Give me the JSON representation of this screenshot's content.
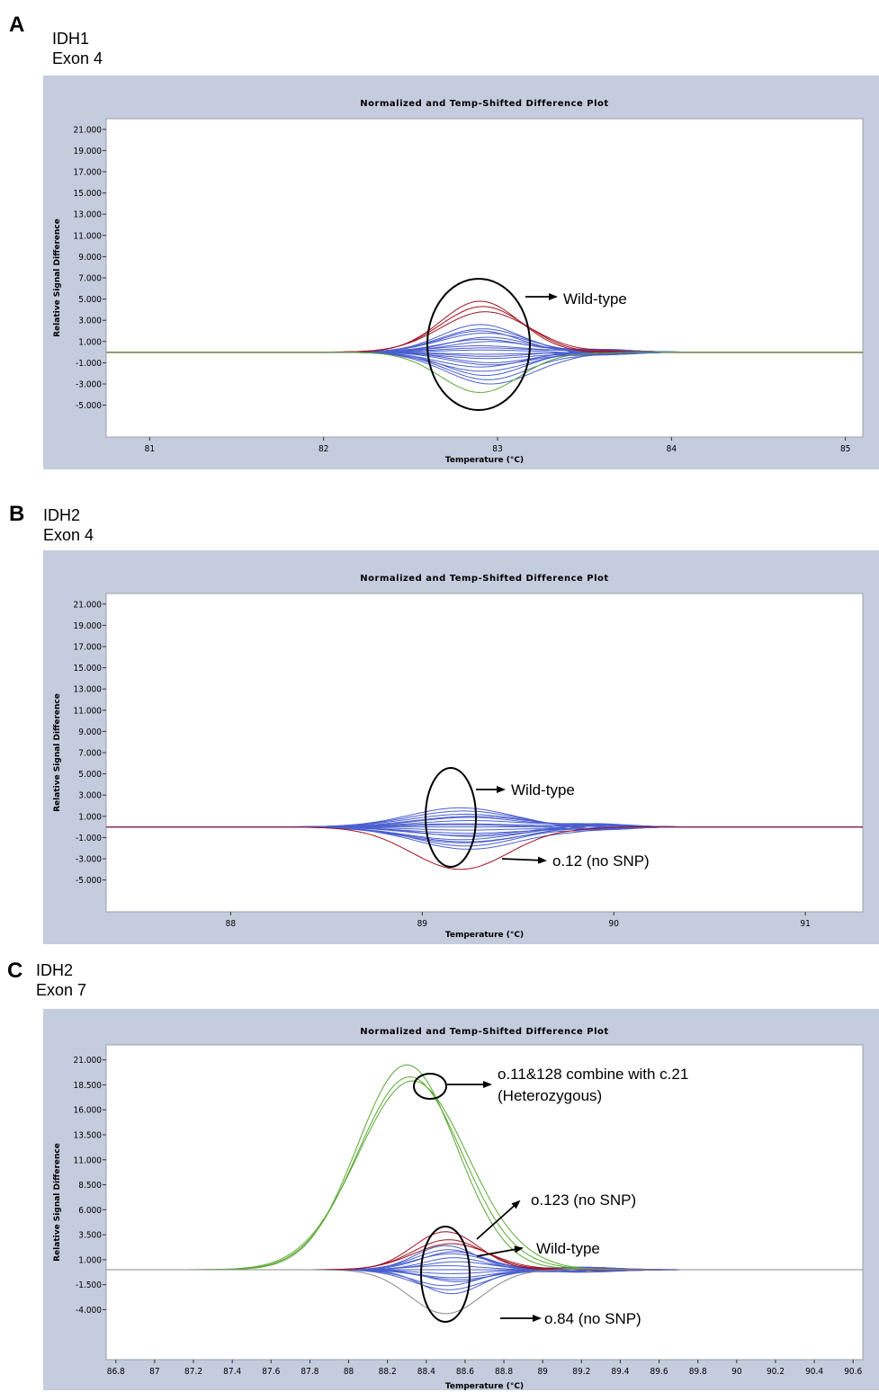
{
  "figure": {
    "panels": [
      {
        "letter": "A",
        "gene": "IDH1",
        "exon": "Exon 4"
      },
      {
        "letter": "B",
        "gene": "IDH2",
        "exon": "Exon 4"
      },
      {
        "letter": "C",
        "gene": "IDH2",
        "exon": "Exon 7"
      }
    ]
  },
  "colors": {
    "frame": "#c4ccdd",
    "wildtype": "#4a5fcf",
    "variant_red": "#a01020",
    "variant_green": "#5aa832",
    "grey": "#888888",
    "circle": "#000000"
  },
  "chart_data": [
    {
      "type": "line",
      "title": "Normalized and Temp-Shifted Difference Plot",
      "xlabel": "Temperature (°C)",
      "ylabel": "Relative Signal Difference",
      "xlim": [
        80.75,
        85.1
      ],
      "ylim": [
        -8,
        22
      ],
      "xticks": [
        81,
        82,
        83,
        84,
        85
      ],
      "xtick_labels": [
        "81",
        "82",
        "83",
        "84",
        "85"
      ],
      "yticks": [
        21,
        19,
        17,
        15,
        13,
        11,
        9,
        7,
        5,
        3,
        1,
        -1,
        -3,
        -5
      ],
      "ytick_labels": [
        "21.000",
        "19.000",
        "17.000",
        "15.000",
        "13.000",
        "11.000",
        "9.000",
        "7.000",
        "5.000",
        "3.000",
        "1.000",
        "-1.000",
        "-3.000",
        "-5.000"
      ],
      "series": [
        {
          "group": "wildtype",
          "color": "#4a5fcf",
          "center": 82.9,
          "width": 0.32,
          "peaks": [
            2.6,
            2.2,
            1.8,
            1.4,
            1.0,
            0.6,
            0.2,
            -0.2,
            -0.6,
            -1.0,
            -1.4,
            -1.8,
            -2.2,
            -2.6,
            -3.0,
            2.0,
            1.2,
            0.4,
            -0.4,
            -1.2
          ]
        },
        {
          "group": "red",
          "color": "#a01020",
          "center": 82.9,
          "width": 0.32,
          "peaks": [
            4.8,
            4.3,
            3.8
          ]
        },
        {
          "group": "green",
          "color": "#5aa832",
          "center": 82.9,
          "width": 0.32,
          "peaks": [
            -3.8
          ]
        }
      ],
      "annotations": [
        {
          "text": "Wild-type",
          "x": 82.9,
          "y": 0.5
        }
      ]
    },
    {
      "type": "line",
      "title": "Normalized and Temp-Shifted Difference Plot",
      "xlabel": "Temperature (°C)",
      "ylabel": "Relative Signal Difference",
      "xlim": [
        87.35,
        91.3
      ],
      "ylim": [
        -8,
        22
      ],
      "xticks": [
        88,
        89,
        90,
        91
      ],
      "xtick_labels": [
        "88",
        "89",
        "90",
        "91"
      ],
      "yticks": [
        21,
        19,
        17,
        15,
        13,
        11,
        9,
        7,
        5,
        3,
        1,
        -1,
        -3,
        -5
      ],
      "ytick_labels": [
        "21.000",
        "19.000",
        "17.000",
        "15.000",
        "13.000",
        "11.000",
        "9.000",
        "7.000",
        "5.000",
        "3.000",
        "1.000",
        "-1.000",
        "-3.000",
        "-5.000"
      ],
      "series": [
        {
          "group": "wildtype",
          "color": "#4a5fcf",
          "center": 89.2,
          "width": 0.38,
          "peaks": [
            1.8,
            1.5,
            1.2,
            0.9,
            0.6,
            0.3,
            0.0,
            -0.3,
            -0.6,
            -0.9,
            -1.2,
            -1.5,
            -1.8,
            -2.1,
            1.0,
            0.2,
            -0.8,
            -1.4
          ]
        },
        {
          "group": "red",
          "color": "#a01020",
          "center": 89.2,
          "width": 0.36,
          "peaks": [
            -4.0
          ]
        }
      ],
      "annotations": [
        {
          "text": "Wild-type",
          "x": 89.15,
          "y": 0.5
        },
        {
          "text": "o.12 (no SNP)",
          "x": 89.2,
          "y": -4.0
        }
      ]
    },
    {
      "type": "line",
      "title": "Normalized and Temp-Shifted Difference Plot",
      "xlabel": "Temperature (°C)",
      "ylabel": "Relative Signal Difference",
      "xlim": [
        86.75,
        90.65
      ],
      "ylim": [
        -9,
        22.5
      ],
      "xticks": [
        86.8,
        87,
        87.2,
        87.4,
        87.6,
        87.8,
        88,
        88.2,
        88.4,
        88.6,
        88.8,
        89,
        89.2,
        89.4,
        89.6,
        89.8,
        90,
        90.2,
        90.4,
        90.6
      ],
      "xtick_labels": [
        "86.8",
        "87",
        "87.2",
        "87.4",
        "87.6",
        "87.8",
        "88",
        "88.2",
        "88.4",
        "88.6",
        "88.8",
        "89",
        "89.2",
        "89.4",
        "89.6",
        "89.8",
        "90",
        "90.2",
        "90.4",
        "90.6"
      ],
      "yticks": [
        21,
        18.5,
        16,
        13.5,
        11,
        8.5,
        6,
        3.5,
        1,
        -1.5,
        -4
      ],
      "ytick_labels": [
        "21.000",
        "18.500",
        "16.000",
        "13.500",
        "11.000",
        "8.500",
        "6.000",
        "3.500",
        "1.000",
        "-1.500",
        "-4.000"
      ],
      "series": [
        {
          "group": "wildtype",
          "color": "#4a5fcf",
          "center": 88.5,
          "width": 0.22,
          "peaks": [
            2.4,
            2.0,
            1.6,
            1.2,
            0.8,
            0.4,
            0.0,
            -0.4,
            -0.8,
            -1.2,
            -1.6,
            -2.0,
            -2.4,
            1.8,
            -1.0
          ]
        },
        {
          "group": "red",
          "color": "#a01020",
          "center": 88.5,
          "width": 0.24,
          "peaks": [
            3.8,
            3.0,
            2.6
          ]
        },
        {
          "group": "green",
          "color": "#5aa832",
          "center": 88.3,
          "width": 0.36,
          "peaks": [
            20.5,
            19.3,
            18.9
          ]
        },
        {
          "group": "grey",
          "color": "#888888",
          "center": 88.5,
          "width": 0.26,
          "peaks": [
            -4.4
          ]
        }
      ],
      "annotations": [
        {
          "text": "o.11&128 combine with c.21",
          "x": 88.45,
          "y": 18.5
        },
        {
          "text": "(Heterozygous)",
          "x": 88.45,
          "y": 18.5
        },
        {
          "text": "o.123 (no SNP)",
          "x": 88.5,
          "y": 3.8
        },
        {
          "text": "Wild-type",
          "x": 88.5,
          "y": 0.5
        },
        {
          "text": "o.84 (no SNP)",
          "x": 88.5,
          "y": -4.4
        }
      ]
    }
  ]
}
